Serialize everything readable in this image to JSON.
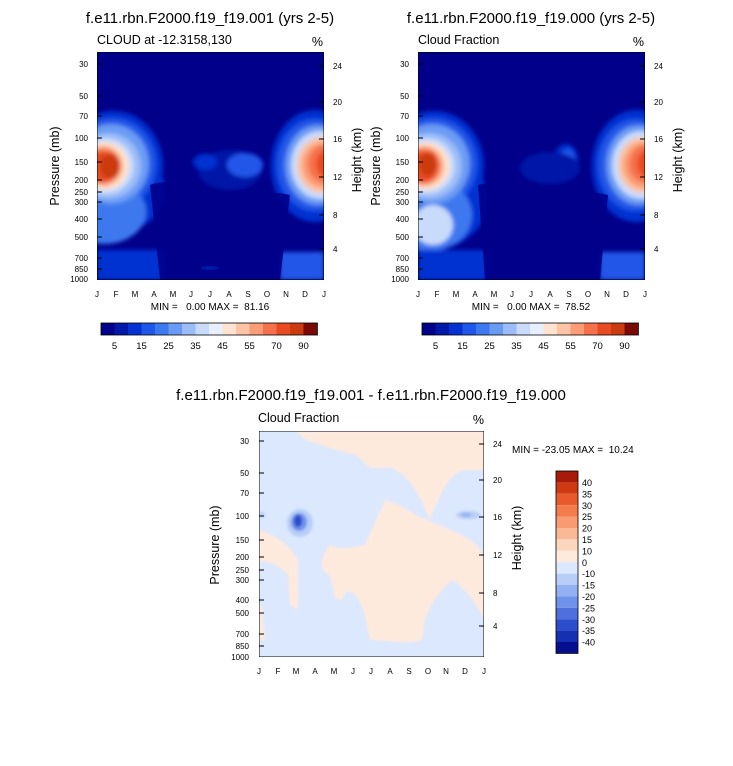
{
  "months": [
    "J",
    "F",
    "M",
    "A",
    "M",
    "J",
    "J",
    "A",
    "S",
    "O",
    "N",
    "D",
    "J"
  ],
  "chart_data": [
    {
      "type": "heatmap",
      "title": "f.e11.rbn.F2000.f19_f19.001 (yrs 2-5)",
      "subtitle_left": "CLOUD at -12.3158,130",
      "units": "%",
      "ylabel": "Pressure (mb)",
      "ylabel_right": "Height (km)",
      "pressure_ticks": [
        "30",
        "50",
        "70",
        "100",
        "150",
        "200",
        "250",
        "300",
        "400",
        "500",
        "700",
        "850",
        "1000"
      ],
      "height_ticks": [
        "24",
        "20",
        "16",
        "12",
        "8",
        "4"
      ],
      "ylim_mb": [
        1000,
        25
      ],
      "stats_text": "MIN =   0.00 MAX =  81.16",
      "min": 0.0,
      "max": 81.16,
      "colorbar_labels": [
        "5",
        "15",
        "25",
        "35",
        "45",
        "55",
        "70",
        "90"
      ],
      "colors": [
        "#00008a",
        "#0019a8",
        "#0432d2",
        "#2157e8",
        "#3c78ef",
        "#6a9bf4",
        "#9cbcf8",
        "#c9dbfb",
        "#e8efff",
        "#fee3d1",
        "#fcc3a5",
        "#fa9c76",
        "#f5714b",
        "#e84b21",
        "#cc3a10",
        "#a4220b",
        "#7a0a04"
      ]
    },
    {
      "type": "heatmap",
      "title": "f.e11.rbn.F2000.f19_f19.000 (yrs 2-5)",
      "subtitle_left": "Cloud Fraction",
      "units": "%",
      "ylabel": "Pressure (mb)",
      "ylabel_right": "Height (km)",
      "pressure_ticks": [
        "30",
        "50",
        "70",
        "100",
        "150",
        "200",
        "250",
        "300",
        "400",
        "500",
        "700",
        "850",
        "1000"
      ],
      "height_ticks": [
        "24",
        "20",
        "16",
        "12",
        "8",
        "4"
      ],
      "ylim_mb": [
        1000,
        25
      ],
      "stats_text": "MIN =   0.00 MAX =  78.52",
      "min": 0.0,
      "max": 78.52,
      "colorbar_labels": [
        "5",
        "15",
        "25",
        "35",
        "45",
        "55",
        "70",
        "90"
      ]
    },
    {
      "type": "heatmap",
      "title": "f.e11.rbn.F2000.f19_f19.001 - f.e11.rbn.F2000.f19_f19.000",
      "subtitle_left": "Cloud Fraction",
      "units": "%",
      "ylabel": "Pressure (mb)",
      "ylabel_right": "Height (km)",
      "pressure_ticks": [
        "30",
        "50",
        "70",
        "100",
        "150",
        "200",
        "250",
        "300",
        "400",
        "500",
        "700",
        "850",
        "1000"
      ],
      "height_ticks": [
        "24",
        "20",
        "16",
        "12",
        "8",
        "4"
      ],
      "ylim_mb": [
        1000,
        25
      ],
      "stats_text": "MIN = -23.05 MAX =  10.24",
      "min": -23.05,
      "max": 10.24,
      "colorbar_labels": [
        "40",
        "35",
        "30",
        "25",
        "20",
        "15",
        "10",
        "0",
        "-10",
        "-15",
        "-20",
        "-25",
        "-30",
        "-35",
        "-40"
      ],
      "colors": [
        "#a81a09",
        "#cf3a12",
        "#e85a2b",
        "#f47b4c",
        "#f89a72",
        "#fbb896",
        "#fcd6bf",
        "#feeadd",
        "#dbe8fd",
        "#b8cef8",
        "#93b1f2",
        "#6f92ea",
        "#4d70dd",
        "#2c4dcc",
        "#1630b3",
        "#060f8f"
      ]
    }
  ]
}
